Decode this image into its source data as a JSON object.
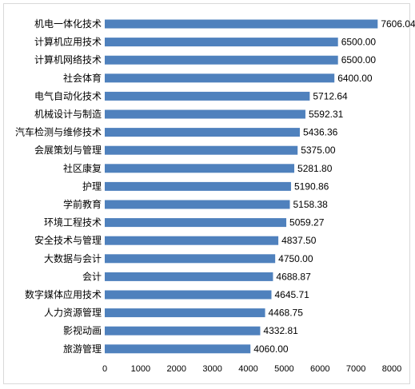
{
  "chart_data": {
    "type": "bar",
    "orientation": "horizontal",
    "categories": [
      "机电一体化技术",
      "计算机应用技术",
      "计算机网络技术",
      "社会体育",
      "电气自动化技术",
      "机械设计与制造",
      "汽车检测与维修技术",
      "会展策划与管理",
      "社区康复",
      "护理",
      "学前教育",
      "环境工程技术",
      "安全技术与管理",
      "大数据与会计",
      "会计",
      "数字媒体应用技术",
      "人力资源管理",
      "影视动画",
      "旅游管理"
    ],
    "values": [
      7606.04,
      6500.0,
      6500.0,
      6400.0,
      5712.64,
      5592.31,
      5436.36,
      5375.0,
      5281.8,
      5190.86,
      5158.38,
      5059.27,
      4837.5,
      4750.0,
      4688.87,
      4645.71,
      4468.75,
      4332.81,
      4060.0
    ],
    "value_labels": [
      "7606.04",
      "6500.00",
      "6500.00",
      "6400.00",
      "5712.64",
      "5592.31",
      "5436.36",
      "5375.00",
      "5281.80",
      "5190.86",
      "5158.38",
      "5059.27",
      "4837.50",
      "4750.00",
      "4688.87",
      "4645.71",
      "4468.75",
      "4332.81",
      "4060.00"
    ],
    "x_ticks": [
      0,
      1000,
      2000,
      3000,
      4000,
      5000,
      6000,
      7000,
      8000
    ],
    "x_tick_labels": [
      "0",
      "1000",
      "2000",
      "3000",
      "4000",
      "5000",
      "6000",
      "7000",
      "8000"
    ],
    "xlim": [
      0,
      8000
    ],
    "title": "",
    "xlabel": "",
    "ylabel": "",
    "grid": false,
    "legend": false,
    "bar_color": "#4f81bd"
  }
}
